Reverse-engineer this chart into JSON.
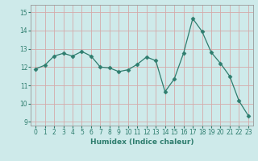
{
  "x": [
    0,
    1,
    2,
    3,
    4,
    5,
    6,
    7,
    8,
    9,
    10,
    11,
    12,
    13,
    14,
    15,
    16,
    17,
    18,
    19,
    20,
    21,
    22,
    23
  ],
  "y": [
    11.9,
    12.1,
    12.6,
    12.75,
    12.6,
    12.85,
    12.6,
    12.0,
    11.95,
    11.75,
    11.85,
    12.15,
    12.55,
    12.35,
    10.65,
    11.35,
    12.75,
    14.65,
    13.95,
    12.8,
    12.2,
    11.5,
    10.15,
    9.35
  ],
  "line_color": "#2e7d6e",
  "marker": "D",
  "marker_size": 2.5,
  "bg_color": "#ceeaea",
  "grid_color": "#d4aaaa",
  "xlabel": "Humidex (Indice chaleur)",
  "ylim": [
    8.8,
    15.4
  ],
  "yticks": [
    9,
    10,
    11,
    12,
    13,
    14,
    15
  ],
  "xlim": [
    -0.5,
    23.5
  ],
  "xticks": [
    0,
    1,
    2,
    3,
    4,
    5,
    6,
    7,
    8,
    9,
    10,
    11,
    12,
    13,
    14,
    15,
    16,
    17,
    18,
    19,
    20,
    21,
    22,
    23
  ],
  "label_fontsize": 6.5,
  "tick_fontsize": 5.5
}
